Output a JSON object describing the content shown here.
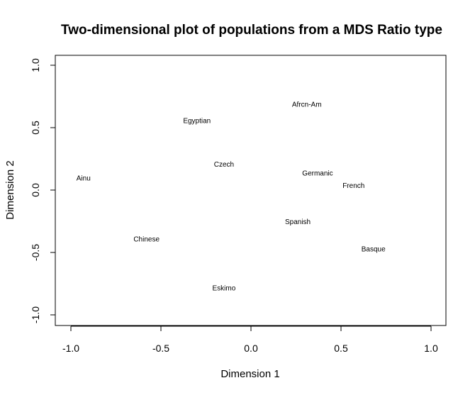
{
  "chart_data": {
    "type": "scatter",
    "title": "Two-dimensional plot of populations from a MDS Ratio type",
    "xlabel": "Dimension 1",
    "ylabel": "Dimension 2",
    "xlim": [
      -1.0,
      1.0
    ],
    "ylim": [
      -1.0,
      1.0
    ],
    "xticks": [
      -1.0,
      -0.5,
      0.0,
      0.5,
      1.0
    ],
    "yticks": [
      -1.0,
      -0.5,
      0.0,
      0.5,
      1.0
    ],
    "tick_labels_x": [
      "-1.0",
      "-0.5",
      "0.0",
      "0.5",
      "1.0"
    ],
    "tick_labels_y": [
      "-1.0",
      "-0.5",
      "0.0",
      "0.5",
      "1.0"
    ],
    "grid": false,
    "marker": "text-labels",
    "points": [
      {
        "label": "Afrcn-Am",
        "x": 0.31,
        "y": 0.69
      },
      {
        "label": "Egyptian",
        "x": -0.3,
        "y": 0.56
      },
      {
        "label": "Czech",
        "x": -0.15,
        "y": 0.21
      },
      {
        "label": "Germanic",
        "x": 0.37,
        "y": 0.14
      },
      {
        "label": "Ainu",
        "x": -0.93,
        "y": 0.1
      },
      {
        "label": "French",
        "x": 0.57,
        "y": 0.04
      },
      {
        "label": "Spanish",
        "x": 0.26,
        "y": -0.25
      },
      {
        "label": "Chinese",
        "x": -0.58,
        "y": -0.39
      },
      {
        "label": "Basque",
        "x": 0.68,
        "y": -0.47
      },
      {
        "label": "Eskimo",
        "x": -0.15,
        "y": -0.78
      }
    ]
  }
}
